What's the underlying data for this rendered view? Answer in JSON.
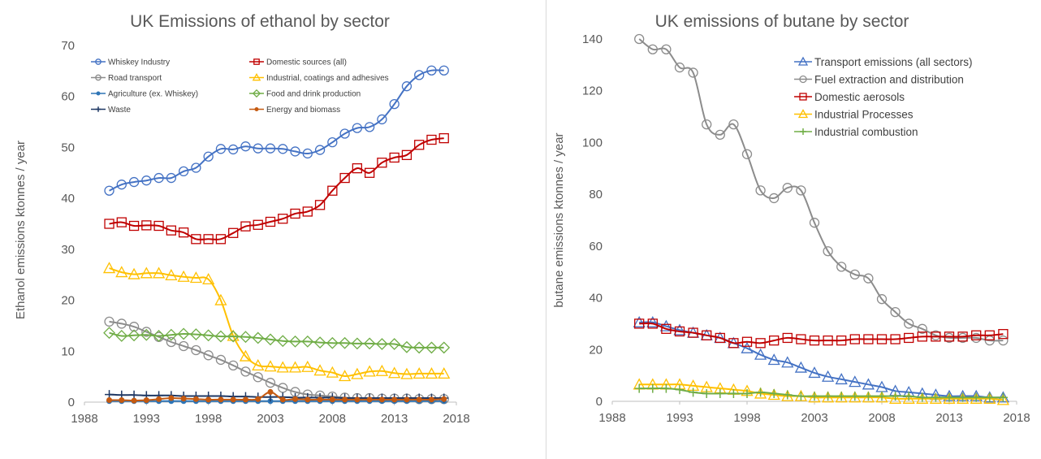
{
  "chart_data": [
    {
      "type": "line",
      "title": "UK Emissions of ethanol by sector",
      "xlabel": "",
      "ylabel": "Ethanol emissions ktonnes / year",
      "xlim": [
        1988,
        2018
      ],
      "ylim": [
        0,
        70
      ],
      "xticks": [
        1988,
        1993,
        1998,
        2003,
        2008,
        2013,
        2018
      ],
      "yticks": [
        0,
        10,
        20,
        30,
        40,
        50,
        60,
        70
      ],
      "grid": false,
      "legend": "top",
      "x": [
        1990,
        1991,
        1992,
        1993,
        1994,
        1995,
        1996,
        1997,
        1998,
        1999,
        2000,
        2001,
        2002,
        2003,
        2004,
        2005,
        2006,
        2007,
        2008,
        2009,
        2010,
        2011,
        2012,
        2013,
        2014,
        2015,
        2016,
        2017
      ],
      "series": [
        {
          "name": "Whiskey Industry",
          "color": "#4472c4",
          "marker": "circle",
          "values": [
            41.5,
            42.7,
            43.2,
            43.5,
            44.0,
            44.0,
            45.3,
            46.0,
            48.2,
            49.7,
            49.6,
            50.2,
            49.8,
            49.8,
            49.7,
            49.2,
            48.8,
            49.5,
            51.0,
            52.7,
            53.8,
            54.0,
            55.5,
            58.5,
            62.0,
            64.2,
            65.1,
            65.1
          ]
        },
        {
          "name": "Domestic sources (all)",
          "color": "#c00000",
          "marker": "square",
          "values": [
            35.0,
            35.3,
            34.6,
            34.7,
            34.6,
            33.7,
            33.3,
            32.0,
            32.0,
            32.0,
            33.2,
            34.5,
            34.8,
            35.4,
            36.0,
            37.0,
            37.4,
            38.7,
            41.5,
            44.0,
            45.9,
            45.0,
            47.0,
            48.0,
            48.5,
            50.5,
            51.5,
            51.8
          ]
        },
        {
          "name": "Road transport",
          "color": "#8c8c8c",
          "marker": "circle",
          "values": [
            15.8,
            15.4,
            14.8,
            13.8,
            12.8,
            11.8,
            11.0,
            10.2,
            9.2,
            8.3,
            7.2,
            6.0,
            4.9,
            3.8,
            2.8,
            2.0,
            1.5,
            1.3,
            1.1,
            0.9,
            0.8,
            0.8,
            0.7,
            0.7,
            0.7,
            0.6,
            0.6,
            0.6
          ]
        },
        {
          "name": "Industrial, coatings and adhesives",
          "color": "#ffc000",
          "marker": "triangle",
          "values": [
            26.3,
            25.5,
            25.1,
            25.3,
            25.3,
            24.9,
            24.6,
            24.4,
            24.1,
            20.0,
            13.0,
            9.0,
            7.2,
            7.0,
            6.8,
            6.8,
            6.9,
            6.2,
            5.8,
            5.1,
            5.5,
            6.0,
            6.1,
            5.7,
            5.5,
            5.6,
            5.6,
            5.6
          ]
        },
        {
          "name": "Agriculture (ex. Whiskey)",
          "color": "#2e75b6",
          "marker": "dot",
          "values": [
            0.2,
            0.2,
            0.2,
            0.2,
            0.2,
            0.2,
            0.2,
            0.2,
            0.2,
            0.2,
            0.2,
            0.2,
            0.2,
            0.2,
            0.2,
            0.2,
            0.2,
            0.2,
            0.2,
            0.2,
            0.2,
            0.2,
            0.2,
            0.2,
            0.2,
            0.2,
            0.2,
            0.2
          ]
        },
        {
          "name": "Food and drink production",
          "color": "#70ad47",
          "marker": "diamond",
          "values": [
            13.6,
            13.0,
            13.1,
            13.2,
            13.0,
            13.2,
            13.4,
            13.3,
            13.1,
            12.9,
            12.9,
            12.8,
            12.6,
            12.3,
            12.0,
            11.9,
            11.9,
            11.7,
            11.6,
            11.6,
            11.5,
            11.5,
            11.4,
            11.4,
            10.8,
            10.7,
            10.7,
            10.7
          ]
        },
        {
          "name": "Waste",
          "color": "#1f3864",
          "marker": "plus",
          "values": [
            1.5,
            1.4,
            1.4,
            1.3,
            1.3,
            1.3,
            1.2,
            1.2,
            1.2,
            1.2,
            1.1,
            1.1,
            1.0,
            1.0,
            1.0,
            0.9,
            0.9,
            0.9,
            0.9,
            0.8,
            0.8,
            0.8,
            0.8,
            0.8,
            0.8,
            0.8,
            0.8,
            0.8
          ]
        },
        {
          "name": "Energy and biomass",
          "color": "#c55a11",
          "marker": "dot",
          "values": [
            0.4,
            0.4,
            0.3,
            0.4,
            0.6,
            0.8,
            0.7,
            0.6,
            0.5,
            0.5,
            0.5,
            0.5,
            0.6,
            2.0,
            0.5,
            0.6,
            0.5,
            0.5,
            0.5,
            0.5,
            0.5,
            0.5,
            0.5,
            0.5,
            0.5,
            0.5,
            0.5,
            0.6
          ]
        }
      ]
    },
    {
      "type": "line",
      "title": "UK emissions of butane by sector",
      "xlabel": "",
      "ylabel": "butane emissions ktonnes / year",
      "xlim": [
        1988,
        2018
      ],
      "ylim": [
        0,
        140
      ],
      "xticks": [
        1988,
        1993,
        1998,
        2003,
        2008,
        2013,
        2018
      ],
      "yticks": [
        0,
        20,
        40,
        60,
        80,
        100,
        120,
        140
      ],
      "grid": false,
      "legend": "top-right",
      "x": [
        1990,
        1991,
        1992,
        1993,
        1994,
        1995,
        1996,
        1997,
        1998,
        1999,
        2000,
        2001,
        2002,
        2003,
        2004,
        2005,
        2006,
        2007,
        2008,
        2009,
        2010,
        2011,
        2012,
        2013,
        2014,
        2015,
        2016,
        2017
      ],
      "series": [
        {
          "name": "Transport emissions (all sectors)",
          "color": "#4472c4",
          "marker": "triangle",
          "values": [
            30.5,
            30.5,
            29.0,
            27.5,
            26.5,
            25.5,
            24.5,
            22.5,
            20.5,
            18.0,
            16.0,
            15.0,
            13.0,
            11.0,
            9.5,
            8.5,
            7.5,
            6.5,
            5.5,
            4.0,
            3.5,
            3.0,
            2.5,
            2.0,
            2.0,
            2.0,
            1.5,
            1.5
          ]
        },
        {
          "name": "Fuel extraction and distribution",
          "color": "#8c8c8c",
          "marker": "circle",
          "values": [
            140,
            136,
            136,
            129,
            127,
            107,
            103,
            107,
            95.5,
            81.5,
            78.5,
            82.5,
            81.5,
            69,
            58,
            52,
            49,
            47.5,
            39.5,
            34.5,
            30,
            28,
            25.5,
            24.5,
            24.5,
            24.5,
            23.5,
            23.5
          ]
        },
        {
          "name": "Domestic aerosols",
          "color": "#c00000",
          "marker": "square",
          "values": [
            30,
            30,
            28,
            27,
            26.5,
            25.5,
            24.5,
            22.5,
            23,
            22.5,
            23.5,
            24.5,
            24,
            23.5,
            23.5,
            23.5,
            24,
            24,
            24,
            24,
            24.5,
            25,
            25,
            25,
            25,
            25.5,
            25.5,
            26
          ]
        },
        {
          "name": "Industrial Processes",
          "color": "#ffc000",
          "marker": "triangle",
          "values": [
            6.5,
            6.5,
            6.5,
            6.5,
            6,
            5.5,
            5,
            4.5,
            4,
            3,
            2.5,
            2,
            2,
            1.5,
            1.5,
            1.5,
            1.5,
            1.5,
            1.5,
            1,
            1,
            1,
            1,
            1,
            1,
            1,
            1,
            0.5
          ]
        },
        {
          "name": "Industrial combustion",
          "color": "#70ad47",
          "marker": "plus",
          "values": [
            5,
            5,
            5,
            4.5,
            3.5,
            3,
            3,
            3,
            3,
            3.5,
            3,
            2.5,
            2,
            2,
            2,
            2,
            2,
            2,
            2,
            2,
            2,
            1.5,
            1.5,
            1.5,
            1.5,
            1.5,
            1.5,
            1.5
          ]
        }
      ]
    }
  ]
}
